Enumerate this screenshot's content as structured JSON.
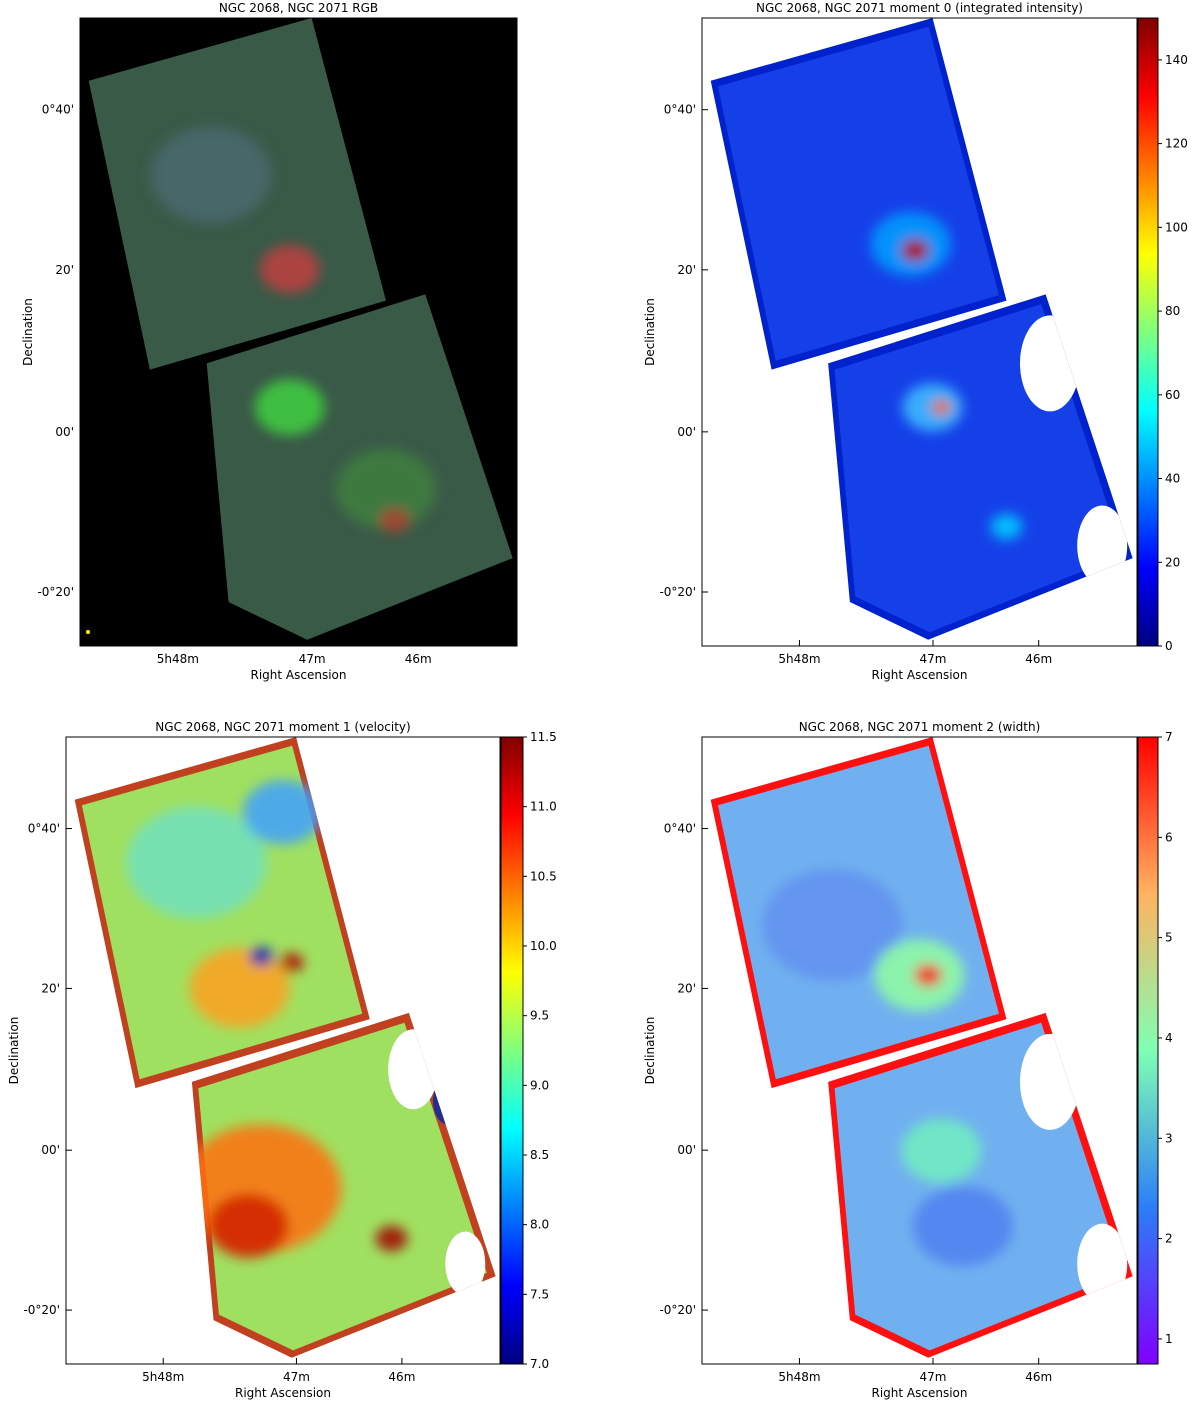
{
  "panels": [
    {
      "title": "NGC 2068, NGC 2071 RGB",
      "x_label": "Right Ascension",
      "y_label": "Declination",
      "x_ticks": [
        "5h48m",
        "47m",
        "46m"
      ],
      "y_ticks": [
        "0°40'",
        "20'",
        "00'",
        "-0°20'"
      ]
    },
    {
      "title": "NGC 2068, NGC 2071 moment 0 (integrated intensity)",
      "x_label": "Right Ascension",
      "y_label": "Declination",
      "x_ticks": [
        "5h48m",
        "47m",
        "46m"
      ],
      "y_ticks": [
        "0°40'",
        "20'",
        "00'",
        "-0°20'"
      ],
      "colorbar": {
        "colormap": "jet",
        "lim": [
          0,
          150
        ],
        "ticks": [
          0,
          20,
          40,
          60,
          80,
          100,
          120,
          140
        ]
      }
    },
    {
      "title": "NGC 2068, NGC 2071 moment 1 (velocity)",
      "x_label": "Right Ascension",
      "y_label": "Declination",
      "x_ticks": [
        "5h48m",
        "47m",
        "46m"
      ],
      "y_ticks": [
        "0°40'",
        "20'",
        "00'",
        "-0°20'"
      ],
      "colorbar": {
        "colormap": "jet",
        "lim": [
          7,
          11.5
        ],
        "ticks": [
          {
            "value": 7,
            "label": "7.0"
          },
          {
            "value": 7.5,
            "label": "7.5"
          },
          {
            "value": 8,
            "label": "8.0"
          },
          {
            "value": 8.5,
            "label": "8.5"
          },
          {
            "value": 9,
            "label": "9.0"
          },
          {
            "value": 9.5,
            "label": "9.5"
          },
          {
            "value": 10,
            "label": "10.0"
          },
          {
            "value": 10.5,
            "label": "10.5"
          },
          {
            "value": 11,
            "label": "11.0"
          },
          {
            "value": 11.5,
            "label": "11.5"
          }
        ]
      }
    },
    {
      "title": "NGC 2068, NGC 2071 moment 2 (width)",
      "x_label": "Right Ascension",
      "y_label": "Declination",
      "x_ticks": [
        "5h48m",
        "47m",
        "46m"
      ],
      "y_ticks": [
        "0°40'",
        "20'",
        "00'",
        "-0°20'"
      ],
      "colorbar": {
        "colormap": "rainbow",
        "lim": [
          0.75,
          7
        ],
        "ticks": [
          1,
          2,
          3,
          4,
          5,
          6,
          7
        ]
      }
    }
  ]
}
